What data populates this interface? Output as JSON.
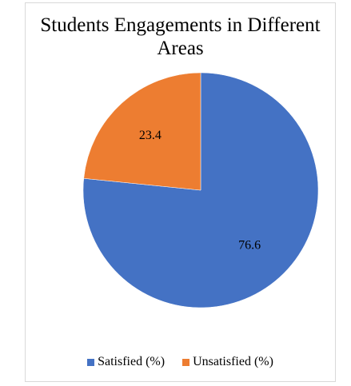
{
  "chart_data": {
    "type": "pie",
    "title": "Students Engagements in Different Areas",
    "categories": [
      "Satisfied (%)",
      "Unsatisfied (%)"
    ],
    "values": [
      76.6,
      23.4
    ],
    "data_labels": [
      "76.6",
      "23.4"
    ],
    "colors": [
      "#4472c4",
      "#ed7d31"
    ],
    "start_angle": "12 o'clock",
    "direction": "clockwise",
    "legend_placement": "bottom"
  }
}
